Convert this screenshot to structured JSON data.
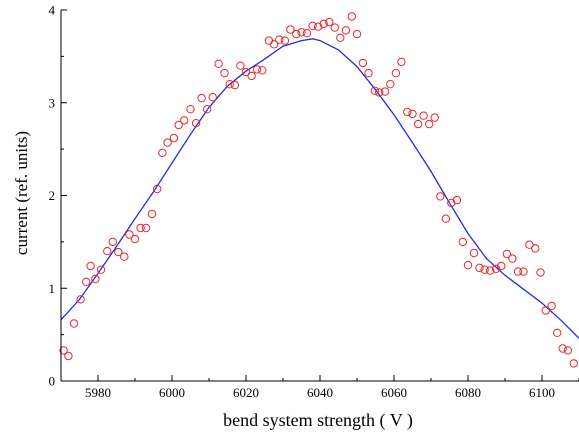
{
  "chart_data": {
    "type": "scatter",
    "xlabel": "bend system strength ( V )",
    "ylabel": "current (ref. units)",
    "xlim": [
      5970,
      6110
    ],
    "ylim": [
      0,
      4
    ],
    "x_ticks": [
      5980,
      6000,
      6020,
      6040,
      6060,
      6080,
      6100
    ],
    "y_ticks": [
      0,
      1,
      2,
      3,
      4
    ],
    "grid": false,
    "legend": "none",
    "colors": {
      "points": "#e8262b",
      "fit": "#1f2fd8",
      "axis": "#000000"
    },
    "series": [
      {
        "type": "scatter",
        "marker": "open-circle",
        "points": [
          [
            5970.7,
            0.33
          ],
          [
            5972.0,
            0.27
          ],
          [
            5973.5,
            0.62
          ],
          [
            5975.3,
            0.88
          ],
          [
            5976.8,
            1.07
          ],
          [
            5978.0,
            1.24
          ],
          [
            5979.3,
            1.1
          ],
          [
            5980.8,
            1.2
          ],
          [
            5982.5,
            1.4
          ],
          [
            5984.0,
            1.5
          ],
          [
            5985.5,
            1.39
          ],
          [
            5987.1,
            1.34
          ],
          [
            5988.5,
            1.58
          ],
          [
            5990.0,
            1.53
          ],
          [
            5991.5,
            1.65
          ],
          [
            5993.0,
            1.65
          ],
          [
            5994.6,
            1.8
          ],
          [
            5996.0,
            2.07
          ],
          [
            5997.4,
            2.46
          ],
          [
            5998.8,
            2.57
          ],
          [
            6000.5,
            2.62
          ],
          [
            6001.8,
            2.76
          ],
          [
            6003.3,
            2.81
          ],
          [
            6005.0,
            2.93
          ],
          [
            6006.5,
            2.78
          ],
          [
            6008.0,
            3.05
          ],
          [
            6009.5,
            2.93
          ],
          [
            6011.0,
            3.06
          ],
          [
            6012.6,
            3.42
          ],
          [
            6014.2,
            3.32
          ],
          [
            6015.6,
            3.2
          ],
          [
            6017.0,
            3.19
          ],
          [
            6018.5,
            3.4
          ],
          [
            6020.0,
            3.33
          ],
          [
            6021.5,
            3.29
          ],
          [
            6023.0,
            3.36
          ],
          [
            6024.4,
            3.35
          ],
          [
            6026.2,
            3.67
          ],
          [
            6027.6,
            3.63
          ],
          [
            6029.0,
            3.68
          ],
          [
            6030.5,
            3.67
          ],
          [
            6032.0,
            3.79
          ],
          [
            6033.6,
            3.74
          ],
          [
            6035.0,
            3.76
          ],
          [
            6036.5,
            3.75
          ],
          [
            6038.0,
            3.83
          ],
          [
            6039.5,
            3.82
          ],
          [
            6041.0,
            3.85
          ],
          [
            6042.5,
            3.87
          ],
          [
            6044.0,
            3.81
          ],
          [
            6045.5,
            3.7
          ],
          [
            6047.0,
            3.78
          ],
          [
            6048.6,
            3.93
          ],
          [
            6050.0,
            3.74
          ],
          [
            6051.6,
            3.43
          ],
          [
            6053.1,
            3.32
          ],
          [
            6054.8,
            3.13
          ],
          [
            6056.0,
            3.11
          ],
          [
            6057.6,
            3.12
          ],
          [
            6059.0,
            3.2
          ],
          [
            6060.5,
            3.32
          ],
          [
            6062.0,
            3.44
          ],
          [
            6063.6,
            2.9
          ],
          [
            6065.0,
            2.88
          ],
          [
            6066.5,
            2.77
          ],
          [
            6068.0,
            2.86
          ],
          [
            6069.5,
            2.77
          ],
          [
            6071.0,
            2.84
          ],
          [
            6072.5,
            1.99
          ],
          [
            6074.0,
            1.75
          ],
          [
            6075.5,
            1.92
          ],
          [
            6077.0,
            1.95
          ],
          [
            6078.6,
            1.5
          ],
          [
            6080.0,
            1.25
          ],
          [
            6081.6,
            1.38
          ],
          [
            6083.1,
            1.22
          ],
          [
            6084.5,
            1.2
          ],
          [
            6086.0,
            1.19
          ],
          [
            6087.6,
            1.21
          ],
          [
            6089.0,
            1.24
          ],
          [
            6090.5,
            1.37
          ],
          [
            6092.0,
            1.32
          ],
          [
            6093.5,
            1.18
          ],
          [
            6095.0,
            1.18
          ],
          [
            6096.6,
            1.47
          ],
          [
            6098.2,
            1.43
          ],
          [
            6099.6,
            1.17
          ],
          [
            6101.0,
            0.76
          ],
          [
            6102.6,
            0.81
          ],
          [
            6104.1,
            0.52
          ],
          [
            6105.6,
            0.35
          ],
          [
            6107.0,
            0.33
          ],
          [
            6108.6,
            0.19
          ]
        ]
      },
      {
        "type": "line",
        "points": [
          [
            5970,
            0.66
          ],
          [
            5975,
            0.88
          ],
          [
            5980,
            1.16
          ],
          [
            5985,
            1.45
          ],
          [
            5990,
            1.75
          ],
          [
            5995,
            2.04
          ],
          [
            6000,
            2.35
          ],
          [
            6005,
            2.66
          ],
          [
            6010,
            2.95
          ],
          [
            6015,
            3.18
          ],
          [
            6020,
            3.34
          ],
          [
            6025,
            3.47
          ],
          [
            6030,
            3.61
          ],
          [
            6035,
            3.67
          ],
          [
            6038,
            3.69
          ],
          [
            6040,
            3.67
          ],
          [
            6045,
            3.57
          ],
          [
            6050,
            3.39
          ],
          [
            6055,
            3.14
          ],
          [
            6060,
            2.87
          ],
          [
            6065,
            2.57
          ],
          [
            6070,
            2.26
          ],
          [
            6075,
            1.92
          ],
          [
            6080,
            1.59
          ],
          [
            6085,
            1.32
          ],
          [
            6090,
            1.14
          ],
          [
            6095,
            0.99
          ],
          [
            6100,
            0.84
          ],
          [
            6105,
            0.66
          ],
          [
            6110,
            0.46
          ]
        ]
      }
    ]
  }
}
